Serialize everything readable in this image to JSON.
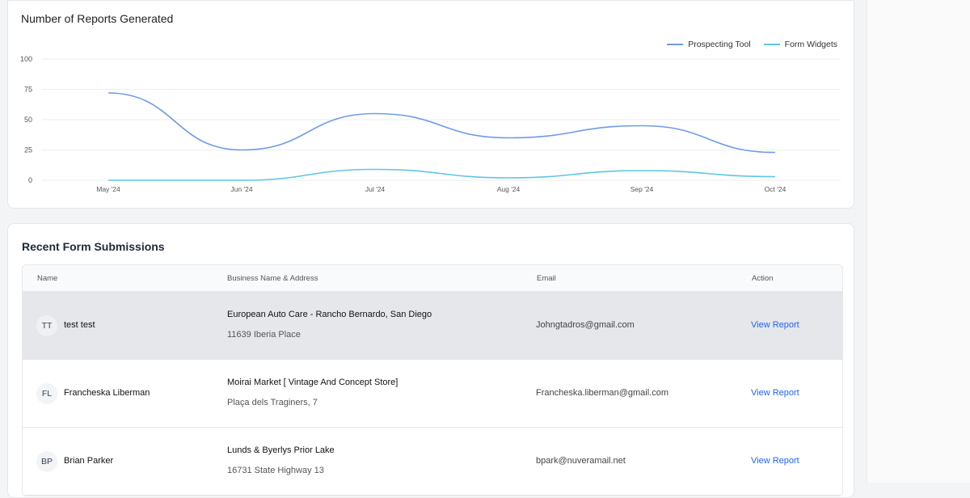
{
  "chart_card": {
    "title": "Number of Reports Generated"
  },
  "chart_data": {
    "type": "line",
    "title": "Number of Reports Generated",
    "categories": [
      "May '24",
      "Jun '24",
      "Jul '24",
      "Aug '24",
      "Sep '24",
      "Oct '24"
    ],
    "yticks": [
      0,
      25,
      50,
      75,
      100
    ],
    "ylim": [
      0,
      100
    ],
    "grid": true,
    "legend_position": "top-right",
    "series": [
      {
        "name": "Prospecting Tool",
        "color": "#6f9be8",
        "values": [
          72,
          25,
          55,
          35,
          45,
          23
        ]
      },
      {
        "name": "Form Widgets",
        "color": "#5cc6e6",
        "values": [
          0,
          0,
          9,
          2,
          8,
          3
        ]
      }
    ]
  },
  "submissions": {
    "title": "Recent Form Submissions",
    "headers": {
      "name": "Name",
      "business": "Business Name & Address",
      "email": "Email",
      "action": "Action"
    },
    "rows": [
      {
        "initials": "TT",
        "name": "test test",
        "business_name": "European Auto Care - Rancho Bernardo, San Diego",
        "address": "11639 Iberia Place",
        "email": "Johngtadros@gmail.com",
        "action": "View Report"
      },
      {
        "initials": "FL",
        "name": "Francheska Liberman",
        "business_name": "Moirai Market [ Vintage And Concept Store]",
        "address": "Plaça dels Traginers, 7",
        "email": "Francheska.liberman@gmail.com",
        "action": "View Report"
      },
      {
        "initials": "BP",
        "name": "Brian Parker",
        "business_name": "Lunds & Byerlys Prior Lake",
        "address": "16731 State Highway 13",
        "email": "bpark@nuveramail.net",
        "action": "View Report"
      }
    ]
  }
}
